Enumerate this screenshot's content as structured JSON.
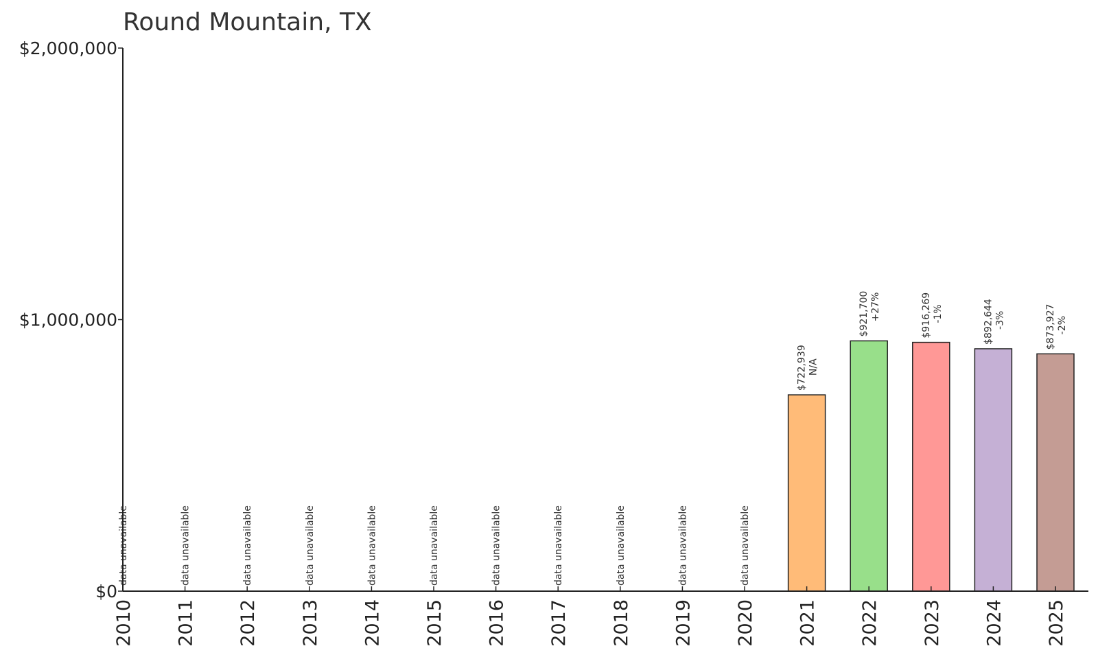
{
  "chart_data": {
    "type": "bar",
    "title": "Round Mountain, TX",
    "xlabel": "",
    "ylabel": "",
    "ylim": [
      0,
      2000000
    ],
    "yticks": [
      {
        "value": 0,
        "label": "$0"
      },
      {
        "value": 1000000,
        "label": "$1,000,000"
      },
      {
        "value": 2000000,
        "label": "$2,000,000"
      }
    ],
    "categories": [
      "2010",
      "2011",
      "2012",
      "2013",
      "2014",
      "2015",
      "2016",
      "2017",
      "2018",
      "2019",
      "2020",
      "2021",
      "2022",
      "2023",
      "2024",
      "2025"
    ],
    "values": [
      null,
      null,
      null,
      null,
      null,
      null,
      null,
      null,
      null,
      null,
      null,
      722939,
      921700,
      916269,
      892644,
      873927
    ],
    "value_labels": [
      "",
      "",
      "",
      "",
      "",
      "",
      "",
      "",
      "",
      "",
      "",
      "$722,939",
      "$921,700",
      "$916,269",
      "$892,644",
      "$873,927"
    ],
    "change_labels": [
      "",
      "",
      "",
      "",
      "",
      "",
      "",
      "",
      "",
      "",
      "",
      "N/A",
      "+27%",
      "-1%",
      "-3%",
      "-2%"
    ],
    "unavailable_label": "data unavailable",
    "colors": [
      "#ffbb78",
      "#ffbb78",
      "#ffbb78",
      "#ffbb78",
      "#ffbb78",
      "#ffbb78",
      "#ffbb78",
      "#ffbb78",
      "#ffbb78",
      "#ffbb78",
      "#ffbb78",
      "#ffbb78",
      "#98df8a",
      "#ff9896",
      "#c5b0d5",
      "#c49c94"
    ],
    "grid": false,
    "legend": "none"
  }
}
